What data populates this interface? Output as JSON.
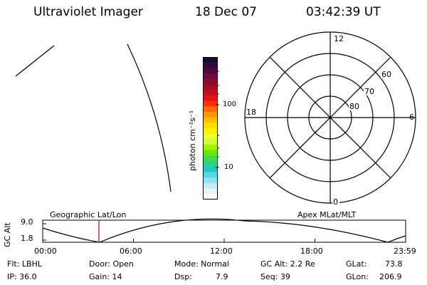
{
  "header": {
    "instrument": "Ultraviolet Imager",
    "date": "18 Dec 07",
    "time": "03:42:39 UT"
  },
  "colorbar": {
    "unit_label": "photon cm⁻²s⁻¹",
    "ticks": [
      "100",
      "10"
    ],
    "colors": [
      "#1a0a2e",
      "#2d0a3a",
      "#4b0a3d",
      "#6e0b3d",
      "#8c0b33",
      "#a80b28",
      "#c2101c",
      "#e01414",
      "#ff3010",
      "#ff6a00",
      "#ff9800",
      "#ffbe00",
      "#ffdb00",
      "#fff000",
      "#f0ff30",
      "#ccff33",
      "#9cf200",
      "#6ae600",
      "#3fd94a",
      "#30d08a",
      "#25c8c8",
      "#52d8e8",
      "#90e4f0",
      "#c4eef6",
      "#e6f5f8",
      "#f4fafb"
    ]
  },
  "polar_plot": {
    "mlt_labels": {
      "top": "12",
      "bottom": "0",
      "left": "18",
      "right": "6"
    },
    "lat_labels": [
      "60",
      "70",
      "80"
    ]
  },
  "timeline": {
    "y_axis_label": "GC Alt",
    "y_ticks": [
      "9.0",
      "1.8"
    ],
    "left_label": "Geographic Lat/Lon",
    "right_label": "Apex MLat/MLT",
    "x_ticks": [
      "00:00",
      "06:00",
      "12:00",
      "18:00",
      "23:59"
    ],
    "marker_color": "#cc0000"
  },
  "status": {
    "flt": "Flt: LBHL",
    "ip": "IP: 36.0",
    "door": "Door: Open",
    "gain": "Gain: 14",
    "mode": "Mode: Normal",
    "dsp_label": "Dsp:",
    "dsp_value": "7.9",
    "gc_alt": "GC Alt: 2.2 Re",
    "seq": "Seq: 39",
    "glat_label": "GLat:",
    "glat_value": "73.8",
    "glon_label": "GLon:",
    "glon_value": "206.9"
  }
}
